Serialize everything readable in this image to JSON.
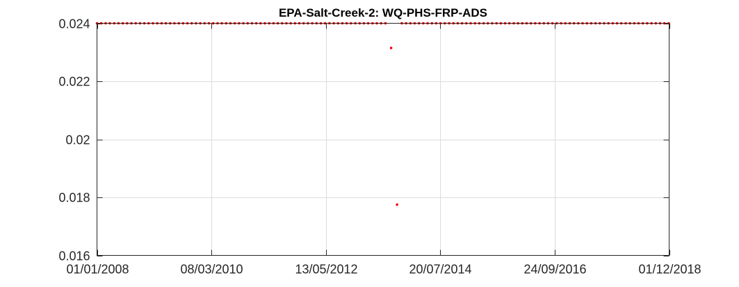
{
  "chart_data": {
    "type": "scatter",
    "title": "EPA-Salt-Creek-2: WQ-PHS-FRP-ADS",
    "xlabel": "",
    "ylabel": "",
    "x_axis_type": "date",
    "xlim": [
      "2008-01-01",
      "2018-12-01"
    ],
    "ylim": [
      0.016,
      0.024
    ],
    "x_ticks": [
      {
        "date": "2008-01-01",
        "label": "01/01/2008"
      },
      {
        "date": "2010-03-08",
        "label": "08/03/2010"
      },
      {
        "date": "2012-05-13",
        "label": "13/05/2012"
      },
      {
        "date": "2014-07-20",
        "label": "20/07/2014"
      },
      {
        "date": "2016-09-24",
        "label": "24/09/2016"
      },
      {
        "date": "2018-12-01",
        "label": "01/12/2018"
      }
    ],
    "y_ticks": [
      {
        "value": 0.016,
        "label": "0.016"
      },
      {
        "value": 0.018,
        "label": "0.018"
      },
      {
        "value": 0.02,
        "label": "0.02"
      },
      {
        "value": 0.022,
        "label": "0.022"
      },
      {
        "value": 0.024,
        "label": "0.024"
      }
    ],
    "grid": true,
    "marker_color": "#ff0000",
    "series": [
      {
        "values_description_note": "",
        "points": [
          {
            "x": "2013-08-12",
            "y": 0.02315
          },
          {
            "x": "2013-09-22",
            "y": 0.01775
          }
        ],
        "constant_runs": [
          {
            "x_start": "2008-01-01",
            "x_end": "2013-07-25",
            "y": 0.024,
            "interval_days": 30
          },
          {
            "x_start": "2013-10-25",
            "x_end": "2018-12-01",
            "y": 0.024,
            "interval_days": 30
          }
        ]
      }
    ]
  }
}
